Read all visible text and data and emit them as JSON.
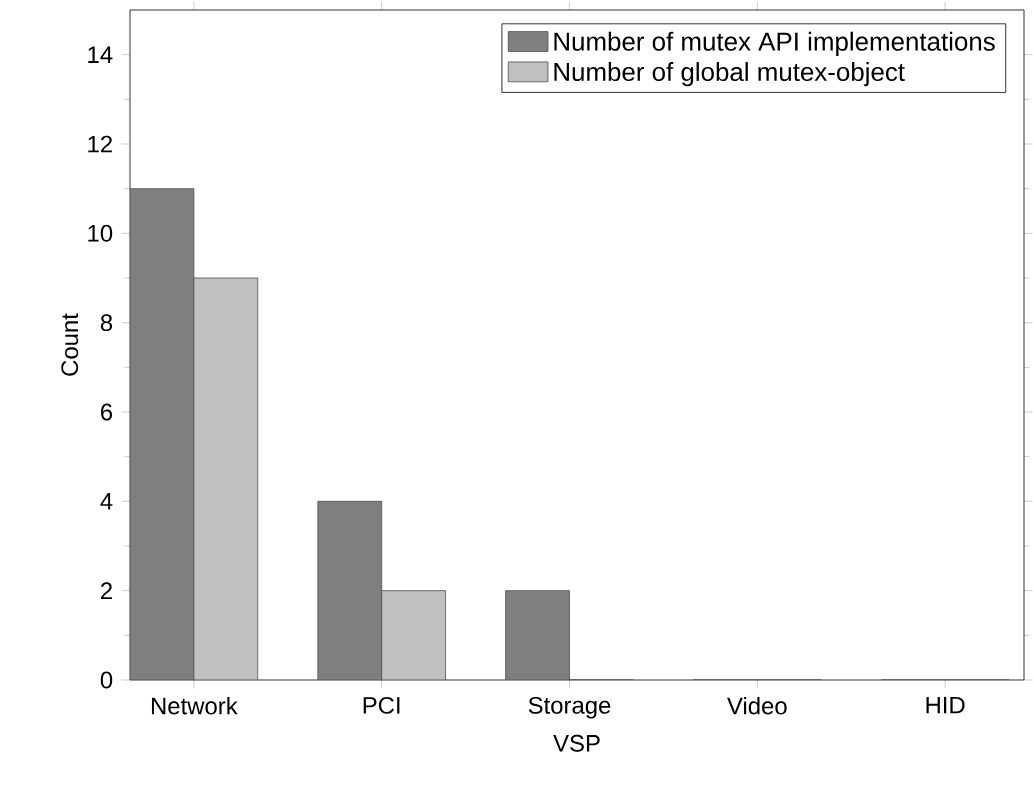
{
  "chart_data": {
    "type": "bar",
    "xlabel": "VSP",
    "ylabel": "Count",
    "categories": [
      "Network",
      "PCI",
      "Storage",
      "Video",
      "HID"
    ],
    "series": [
      {
        "name": "Number of mutex API implementations",
        "color": "#7f7f7f",
        "values": [
          11,
          4,
          2,
          0,
          0
        ]
      },
      {
        "name": "Number of global mutex-object",
        "color": "#c0c0c0",
        "values": [
          9,
          2,
          0,
          0,
          0
        ]
      }
    ],
    "ylim": [
      0,
      15
    ],
    "yticks": [
      0,
      2,
      4,
      6,
      8,
      10,
      12,
      14
    ],
    "legend": "top right"
  }
}
